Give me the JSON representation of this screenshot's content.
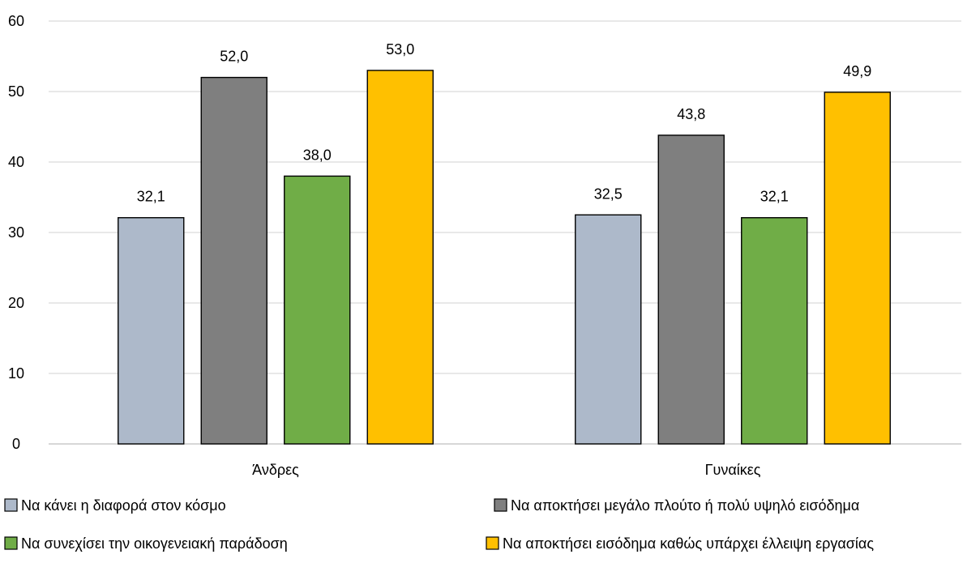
{
  "chart_data": {
    "type": "bar",
    "title": "",
    "xlabel": "",
    "ylabel": "",
    "ylim": [
      0,
      60
    ],
    "yticks": [
      0,
      10,
      20,
      30,
      40,
      50,
      60
    ],
    "grid": true,
    "legend_position": "bottom",
    "categories": [
      "Άνδρες",
      "Γυναίκες"
    ],
    "series": [
      {
        "name": "Να κάνει η διαφορά στον κόσμο",
        "color": "#adb9ca",
        "values": [
          32.1,
          32.5
        ],
        "labels": [
          "32,1",
          "32,5"
        ]
      },
      {
        "name": "Να αποκτήσει μεγάλο πλούτο ή πολύ υψηλό εισόδημα",
        "color": "#7f7f7f",
        "values": [
          52.0,
          43.8
        ],
        "labels": [
          "52,0",
          "43,8"
        ]
      },
      {
        "name": "Να συνεχίσει την οικογενειακή παράδοση",
        "color": "#70ad47",
        "values": [
          38.0,
          32.1
        ],
        "labels": [
          "38,0",
          "32,1"
        ]
      },
      {
        "name": "Να αποκτήσει εισόδημα καθώς υπάρχει έλλειψη εργασίας",
        "color": "#ffc000",
        "values": [
          53.0,
          49.9
        ],
        "labels": [
          "53,0",
          "49,9"
        ]
      }
    ]
  }
}
